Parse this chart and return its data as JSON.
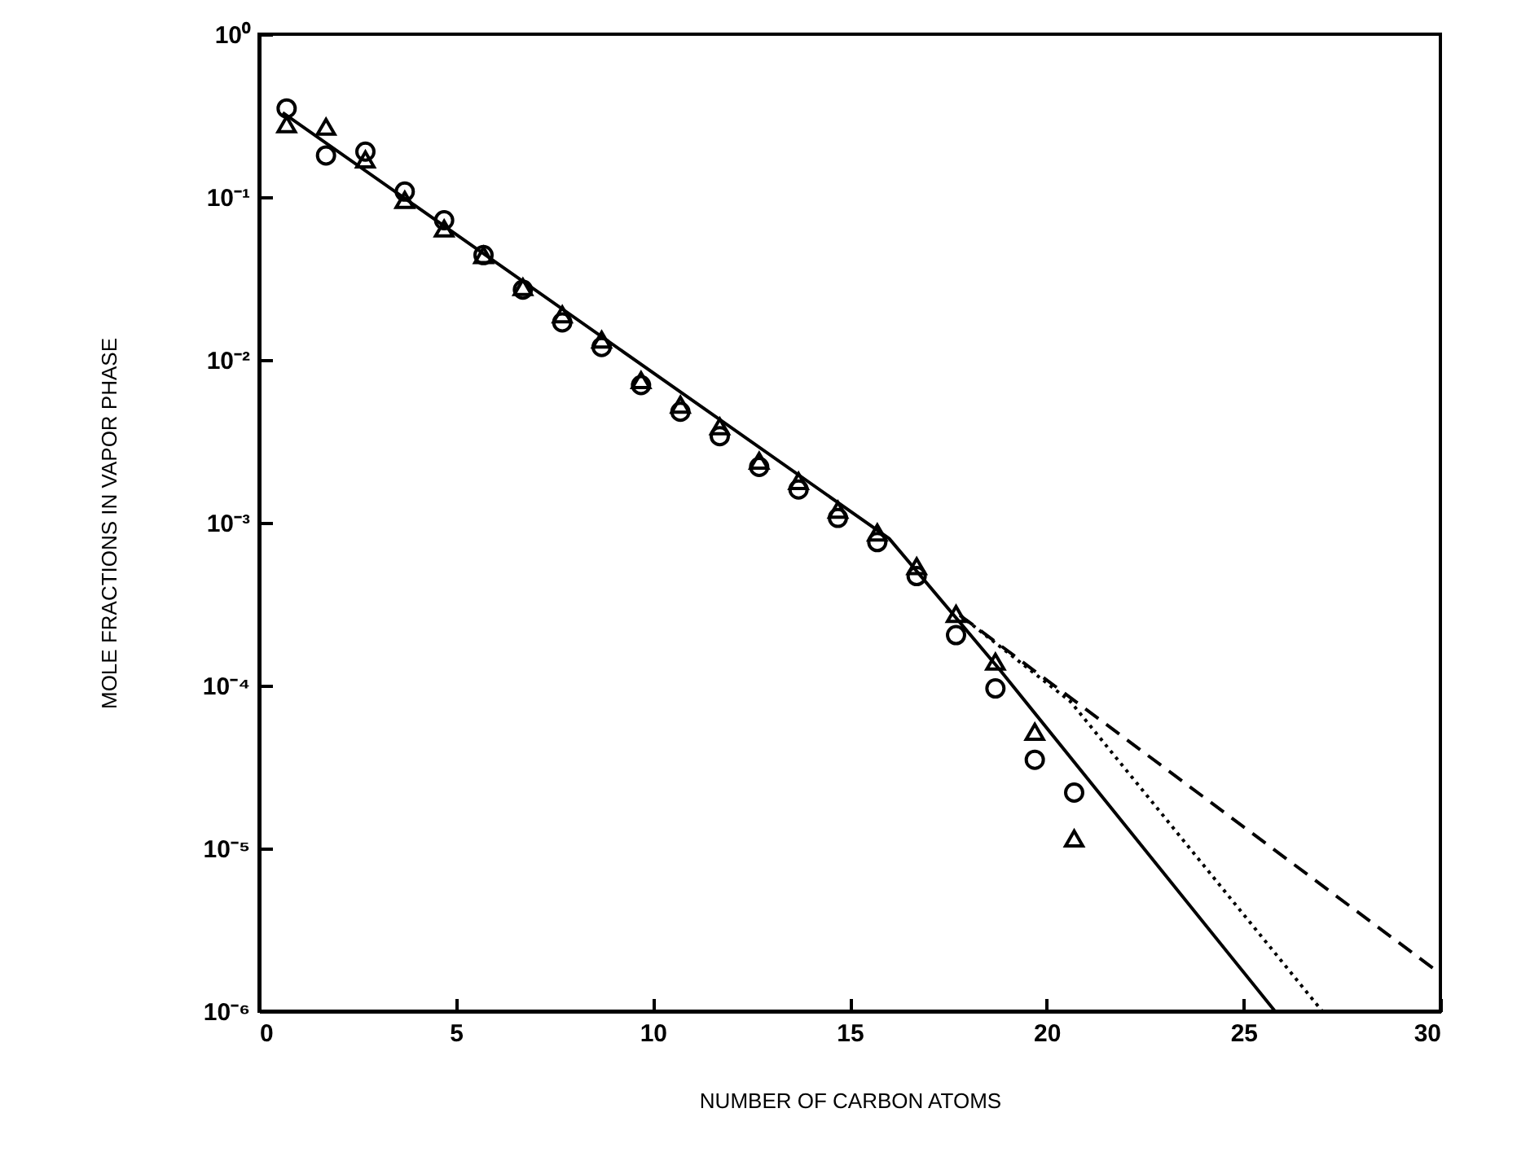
{
  "chart_data": {
    "type": "scatter",
    "xlabel": "NUMBER OF CARBON ATOMS",
    "ylabel": "MOLE FRACTIONS IN VAPOR PHASE",
    "log": "y",
    "grid": false,
    "xlim": [
      0,
      30
    ],
    "xticks": [
      0,
      5,
      10,
      15,
      20,
      25,
      30
    ],
    "ylim": [
      1e-06,
      1
    ],
    "yticks": [
      {
        "value": 1e-06,
        "label": "10⁻⁶"
      },
      {
        "value": 1e-05,
        "label": "10⁻⁵"
      },
      {
        "value": 0.0001,
        "label": "10⁻⁴"
      },
      {
        "value": 0.001,
        "label": "10⁻³"
      },
      {
        "value": 0.01,
        "label": "10⁻²"
      },
      {
        "value": 0.1,
        "label": "10⁻¹"
      },
      {
        "value": 1,
        "label": "10⁰"
      }
    ],
    "series": [
      {
        "marker": "circle",
        "color": "#000000",
        "x": [
          0.7,
          1.7,
          2.7,
          3.7,
          4.7,
          5.7,
          6.7,
          7.7,
          8.7,
          9.7,
          10.7,
          11.7,
          12.7,
          13.7,
          14.7,
          15.7,
          16.7,
          17.7,
          18.7,
          19.7,
          20.7
        ],
        "values": [
          0.35,
          0.18,
          0.19,
          0.108,
          0.072,
          0.044,
          0.027,
          0.017,
          0.012,
          0.007,
          0.0048,
          0.0034,
          0.0022,
          0.0016,
          0.00107,
          0.00076,
          0.00047,
          0.000204,
          9.6e-05,
          3.5e-05,
          2.2e-05
        ]
      },
      {
        "marker": "triangle",
        "color": "#000000",
        "x": [
          0.7,
          1.7,
          2.7,
          3.7,
          4.7,
          5.7,
          6.7,
          7.7,
          8.7,
          9.7,
          10.7,
          11.7,
          12.7,
          13.7,
          14.7,
          15.7,
          16.7,
          17.7,
          18.7,
          19.7,
          20.7
        ],
        "values": [
          0.28,
          0.27,
          0.17,
          0.096,
          0.064,
          0.044,
          0.028,
          0.019,
          0.0133,
          0.0075,
          0.0053,
          0.0039,
          0.0024,
          0.0018,
          0.0012,
          0.00087,
          0.00054,
          0.000275,
          0.00014,
          5.2e-05,
          1.15e-05
        ]
      },
      {
        "type": "line",
        "line_style": "solid",
        "color": "#000000",
        "x": [
          0.6,
          16,
          18.8,
          25.8
        ],
        "values": [
          0.33,
          0.0008,
          0.000126,
          1e-06
        ]
      },
      {
        "type": "line",
        "line_style": "dotted",
        "color": "#000000",
        "x": [
          17.8,
          20.6,
          27
        ],
        "values": [
          0.00027,
          8e-05,
          1e-06
        ]
      },
      {
        "type": "line",
        "line_style": "dashed",
        "color": "#000000",
        "x": [
          17.8,
          30
        ],
        "values": [
          0.00027,
          1.7e-06
        ]
      }
    ]
  }
}
